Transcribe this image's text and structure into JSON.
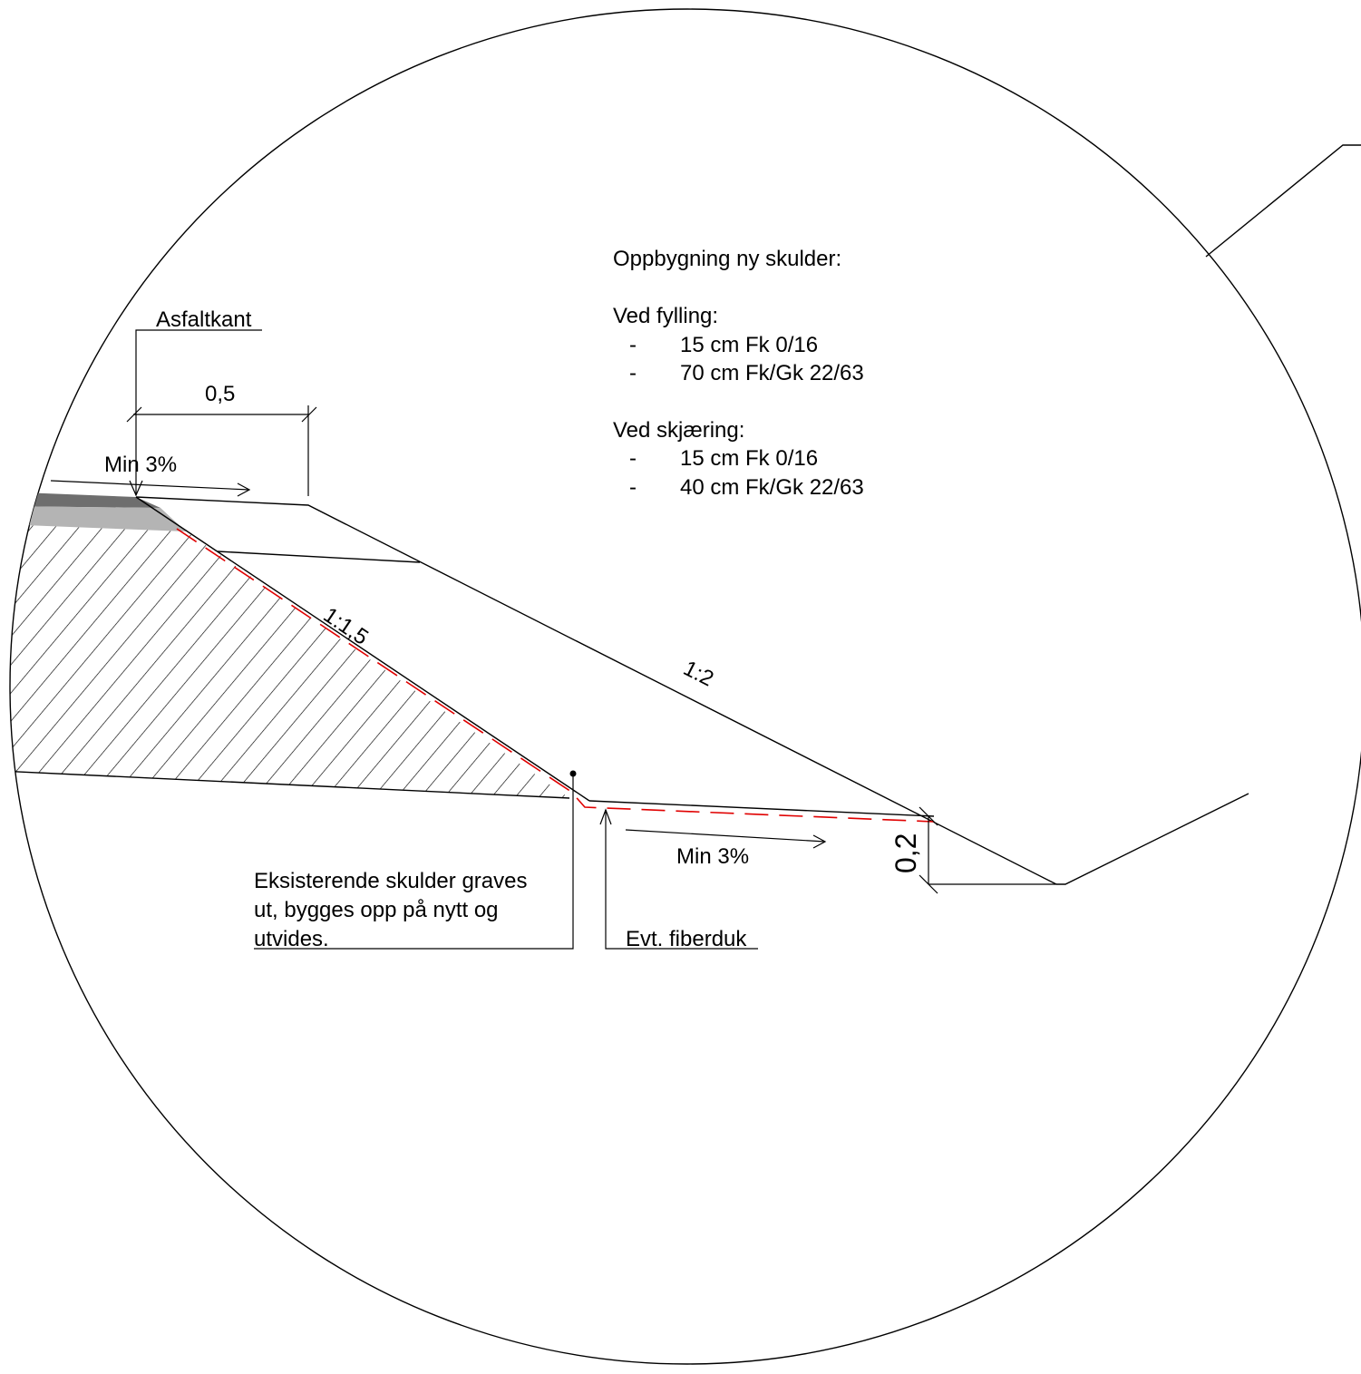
{
  "notes": {
    "heading": "Oppbygning ny skulder:",
    "fill_title": "Ved fylling:",
    "fill_items": [
      {
        "dash": "-",
        "text": "15 cm Fk 0/16"
      },
      {
        "dash": "-",
        "text": "70 cm Fk/Gk 22/63"
      }
    ],
    "cut_title": "Ved skjæring:",
    "cut_items": [
      {
        "dash": "-",
        "text": "15 cm Fk 0/16"
      },
      {
        "dash": "-",
        "text": "40 cm Fk/Gk 22/63"
      }
    ]
  },
  "labels": {
    "asphalt_edge": "Asfaltkant",
    "width_dim": "0,5",
    "slope_top": "Min 3%",
    "slope_existing": "1:1,5",
    "slope_new": "1:2",
    "slope_bottom": "Min 3%",
    "height_dim": "0,2",
    "excavation_note": [
      "Eksisterende skulder graves",
      "ut, bygges opp på nytt og",
      "utvides."
    ],
    "geotextile": "Evt. fiberduk"
  },
  "colors": {
    "line": "#000000",
    "geotextile_line": "#e00000",
    "asphalt_dark": "#6e6e6e",
    "asphalt_light": "#b4b4b4"
  }
}
